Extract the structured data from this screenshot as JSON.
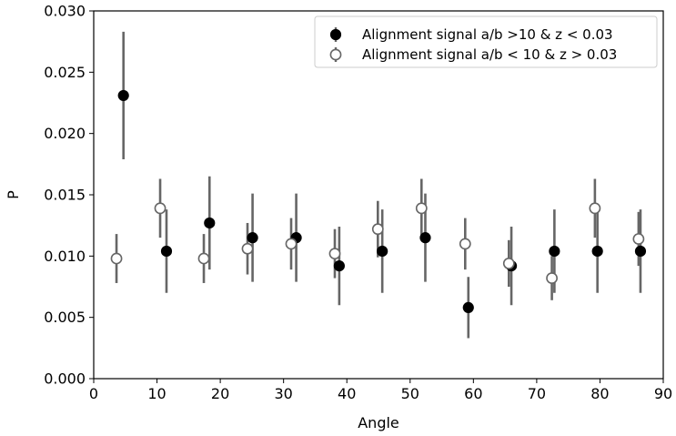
{
  "chart_data": {
    "type": "scatter",
    "title": "",
    "xlabel": "Angle",
    "ylabel": "P",
    "xlim": [
      0,
      90
    ],
    "ylim": [
      0,
      0.03
    ],
    "xticks": [
      0,
      10,
      20,
      30,
      40,
      50,
      60,
      70,
      80,
      90
    ],
    "yticks": [
      0.0,
      0.005,
      0.01,
      0.015,
      0.02,
      0.025,
      0.03
    ],
    "xtick_labels": [
      "0",
      "10",
      "20",
      "30",
      "40",
      "50",
      "60",
      "70",
      "80",
      "90"
    ],
    "ytick_labels": [
      "0.000",
      "0.005",
      "0.010",
      "0.015",
      "0.020",
      "0.025",
      "0.030"
    ],
    "grid": false,
    "legend_position": "top-right",
    "error_bar_color": "#666666",
    "series": [
      {
        "name": "Alignment signal a/b >10 & z < 0.03",
        "marker": "filled-circle",
        "color": "#000000",
        "points": [
          {
            "x": 4.7,
            "y": 0.0231,
            "err": 0.0052
          },
          {
            "x": 11.5,
            "y": 0.0104,
            "err": 0.0034
          },
          {
            "x": 18.3,
            "y": 0.0127,
            "err": 0.0038
          },
          {
            "x": 25.1,
            "y": 0.0115,
            "err": 0.0036
          },
          {
            "x": 32.0,
            "y": 0.0115,
            "err": 0.0036
          },
          {
            "x": 38.8,
            "y": 0.0092,
            "err": 0.0032
          },
          {
            "x": 45.6,
            "y": 0.0104,
            "err": 0.0034
          },
          {
            "x": 52.4,
            "y": 0.0115,
            "err": 0.0036
          },
          {
            "x": 59.2,
            "y": 0.0058,
            "err": 0.0025
          },
          {
            "x": 66.0,
            "y": 0.0092,
            "err": 0.0032
          },
          {
            "x": 72.8,
            "y": 0.0104,
            "err": 0.0034
          },
          {
            "x": 79.6,
            "y": 0.0104,
            "err": 0.0034
          },
          {
            "x": 86.4,
            "y": 0.0104,
            "err": 0.0034
          }
        ]
      },
      {
        "name": "Alignment signal a/b < 10 & z > 0.03",
        "marker": "open-circle",
        "color": "#666666",
        "points": [
          {
            "x": 3.6,
            "y": 0.0098,
            "err": 0.002
          },
          {
            "x": 10.5,
            "y": 0.0139,
            "err": 0.0024
          },
          {
            "x": 17.4,
            "y": 0.0098,
            "err": 0.002
          },
          {
            "x": 24.3,
            "y": 0.0106,
            "err": 0.0021
          },
          {
            "x": 31.2,
            "y": 0.011,
            "err": 0.0021
          },
          {
            "x": 38.1,
            "y": 0.0102,
            "err": 0.002
          },
          {
            "x": 44.9,
            "y": 0.0122,
            "err": 0.0023
          },
          {
            "x": 51.8,
            "y": 0.0139,
            "err": 0.0024
          },
          {
            "x": 58.7,
            "y": 0.011,
            "err": 0.0021
          },
          {
            "x": 65.6,
            "y": 0.0094,
            "err": 0.0019
          },
          {
            "x": 72.4,
            "y": 0.0082,
            "err": 0.0018
          },
          {
            "x": 79.2,
            "y": 0.0139,
            "err": 0.0024
          },
          {
            "x": 86.1,
            "y": 0.0114,
            "err": 0.0022
          }
        ]
      }
    ]
  }
}
